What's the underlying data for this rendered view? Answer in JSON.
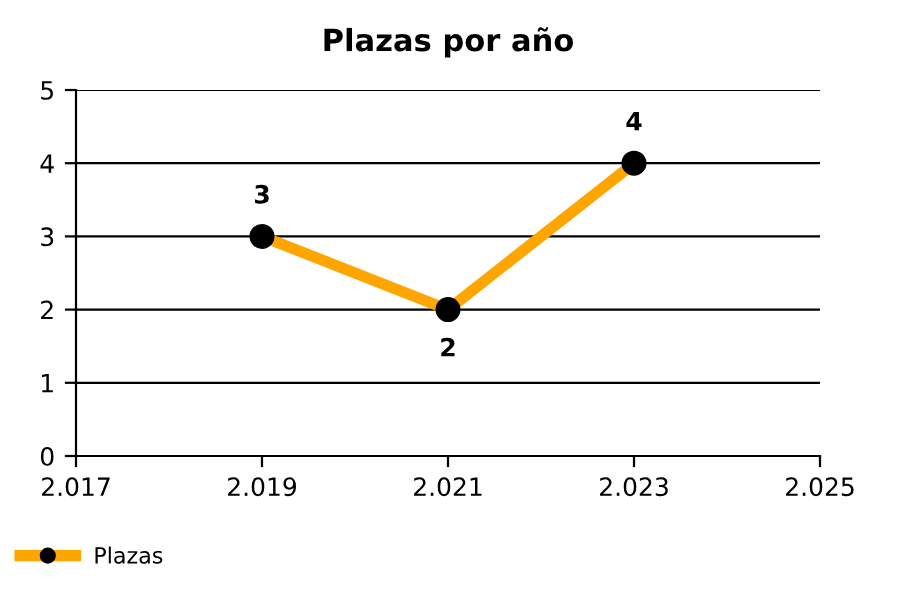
{
  "chart_data": {
    "type": "line",
    "title": "Plazas por año",
    "x": [
      2019,
      2021,
      2023
    ],
    "series": [
      {
        "name": "Plazas",
        "color": "#ffa500",
        "values": [
          3,
          2,
          4
        ]
      }
    ],
    "xlim": [
      2017,
      2025
    ],
    "xticks": [
      {
        "value": 2017,
        "label": "2.017"
      },
      {
        "value": 2019,
        "label": "2.019"
      },
      {
        "value": 2021,
        "label": "2.021"
      },
      {
        "value": 2023,
        "label": "2.023"
      },
      {
        "value": 2025,
        "label": "2.025"
      }
    ],
    "ylim": [
      0,
      5
    ],
    "yticks": [
      0,
      1,
      2,
      3,
      4,
      5
    ],
    "grid": "y",
    "legend": "bottom left",
    "marker": "circle",
    "line_style": "solid",
    "data_labels": true
  }
}
